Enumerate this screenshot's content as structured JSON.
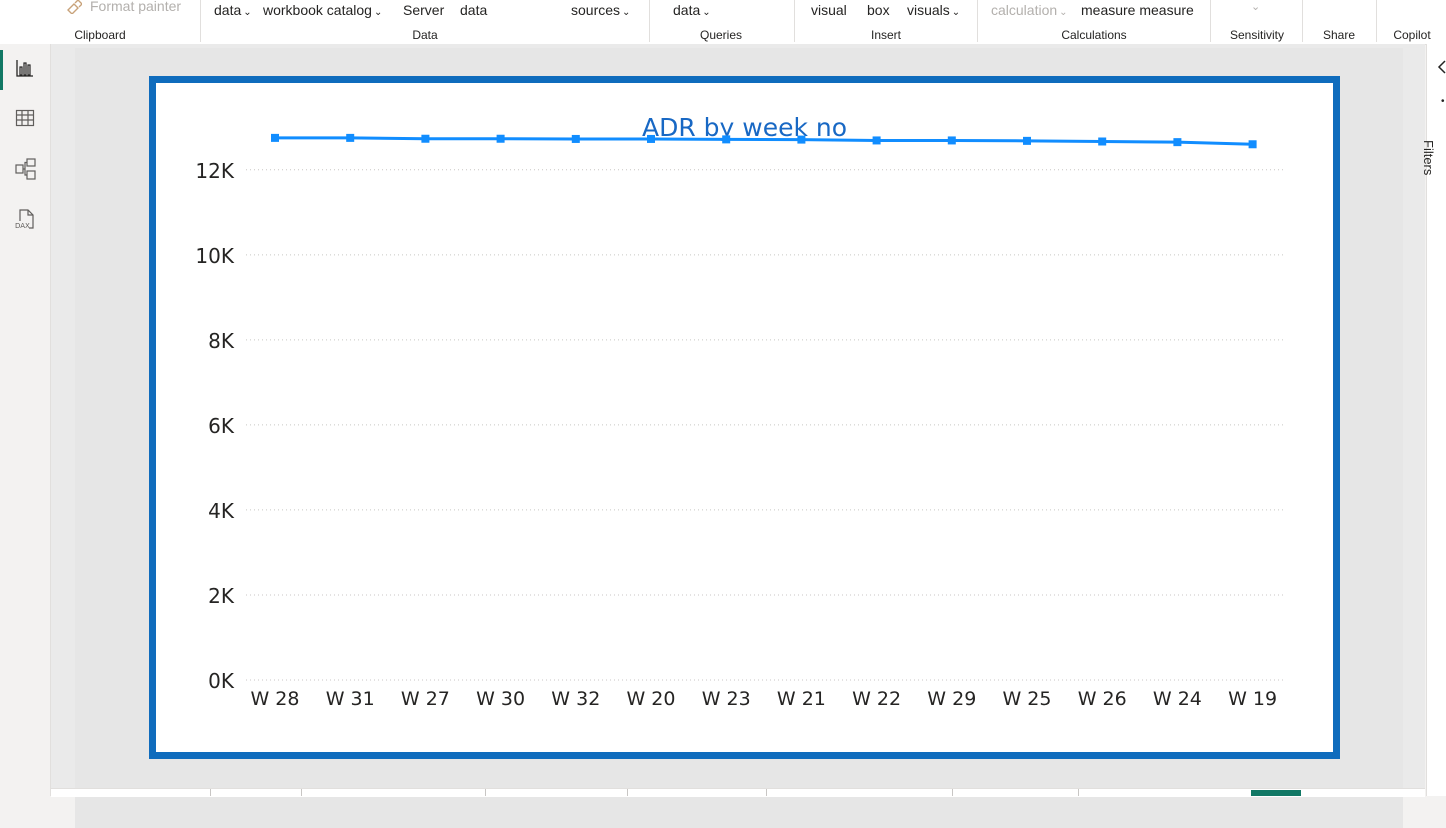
{
  "ribbon": {
    "items": [
      {
        "label": "Format painter",
        "dim": true
      },
      {
        "label": "data",
        "chevron": true
      },
      {
        "label": "workbook catalog",
        "chevron": true
      },
      {
        "label": "Server"
      },
      {
        "label": "data"
      },
      {
        "label": "sources",
        "chevron": true
      },
      {
        "label": "data",
        "chevron": true
      },
      {
        "label": "visual"
      },
      {
        "label": "box"
      },
      {
        "label": "visuals",
        "chevron": true
      },
      {
        "label": "calculation",
        "chevron": true,
        "dim": true
      },
      {
        "label": "measure measure"
      }
    ],
    "groups": [
      "Clipboard",
      "Data",
      "Queries",
      "Insert",
      "Calculations",
      "Sensitivity",
      "Share",
      "Copilot"
    ]
  },
  "rail": {
    "icons": [
      "report-view-icon",
      "table-view-icon",
      "model-view-icon",
      "dax-query-view-icon"
    ],
    "dax_label": "DAX"
  },
  "right_pane": {
    "label": "Filters"
  },
  "chart_data": {
    "type": "line",
    "title": "ADR by week no",
    "categories": [
      "W 28",
      "W 31",
      "W 27",
      "W 30",
      "W 32",
      "W 20",
      "W 23",
      "W 21",
      "W 22",
      "W 29",
      "W 25",
      "W 26",
      "W 24",
      "W 19"
    ],
    "values": [
      12750,
      12750,
      12730,
      12730,
      12725,
      12725,
      12715,
      12710,
      12690,
      12690,
      12680,
      12665,
      12650,
      12600
    ],
    "ylim": [
      0,
      13500
    ],
    "yticks": [
      0,
      2000,
      4000,
      6000,
      8000,
      10000,
      12000
    ],
    "ytick_labels": [
      "0K",
      "2K",
      "4K",
      "6K",
      "8K",
      "10K",
      "12K"
    ],
    "line_color": "#118dff",
    "grid": true
  }
}
